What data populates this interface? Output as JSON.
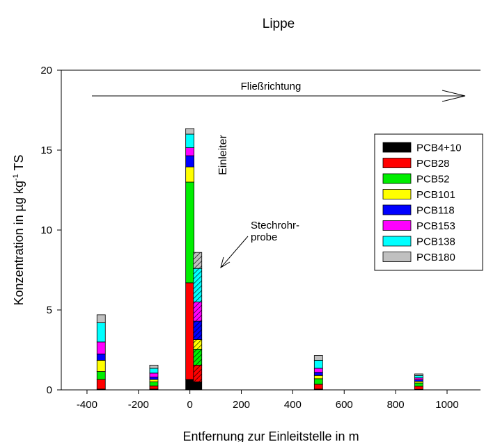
{
  "chart_data": {
    "type": "bar",
    "stacked": true,
    "title": "Lippe",
    "xlabel": "Entfernung zur Einleitstelle in m",
    "ylabel_parts": [
      "Konzentration  in µg kg",
      "-1",
      " TS"
    ],
    "xlim": [
      -500,
      1130
    ],
    "ylim": [
      0,
      20
    ],
    "xticks": [
      -400,
      -200,
      0,
      200,
      400,
      600,
      800,
      1000
    ],
    "xtick_labels": [
      "-400",
      "-200",
      "0",
      "200",
      "400",
      "600",
      "800",
      "1000"
    ],
    "yticks": [
      0,
      5,
      10,
      15,
      20
    ],
    "ytick_labels": [
      "0",
      "5",
      "10",
      "15",
      "20"
    ],
    "grid": false,
    "legend_position": "top-right",
    "series": [
      {
        "name": "PCB4+10",
        "color": "#000000"
      },
      {
        "name": "PCB28",
        "color": "#ff0000"
      },
      {
        "name": "PCB52",
        "color": "#00ee00"
      },
      {
        "name": "PCB101",
        "color": "#ffff00"
      },
      {
        "name": "PCB118",
        "color": "#0000ff"
      },
      {
        "name": "PCB153",
        "color": "#ff00ff"
      },
      {
        "name": "PCB138",
        "color": "#00ffff"
      },
      {
        "name": "PCB180",
        "color": "#c0c0c0"
      }
    ],
    "bars": [
      {
        "x": -345,
        "hatched": false,
        "values": [
          0.05,
          0.6,
          0.5,
          0.7,
          0.4,
          0.75,
          1.2,
          0.5
        ]
      },
      {
        "x": -140,
        "hatched": false,
        "values": [
          0.05,
          0.2,
          0.25,
          0.15,
          0.15,
          0.25,
          0.3,
          0.2
        ]
      },
      {
        "x": 0,
        "hatched": false,
        "values": [
          0.65,
          6.05,
          6.3,
          0.95,
          0.7,
          0.5,
          0.85,
          0.35
        ]
      },
      {
        "x": 30,
        "hatched": true,
        "values": [
          0.5,
          1.05,
          1.0,
          0.6,
          1.15,
          1.2,
          2.1,
          1.0
        ]
      },
      {
        "x": 500,
        "hatched": false,
        "values": [
          0.05,
          0.3,
          0.35,
          0.2,
          0.2,
          0.25,
          0.5,
          0.3
        ]
      },
      {
        "x": 890,
        "hatched": false,
        "values": [
          0.03,
          0.2,
          0.2,
          0.1,
          0.1,
          0.12,
          0.15,
          0.1
        ]
      }
    ],
    "annotations": {
      "flow_label": "Fließrichtung",
      "einleiter_label": "Einleiter",
      "core_sample_label_line1": "Stechrohr-",
      "core_sample_label_line2": "probe"
    }
  }
}
